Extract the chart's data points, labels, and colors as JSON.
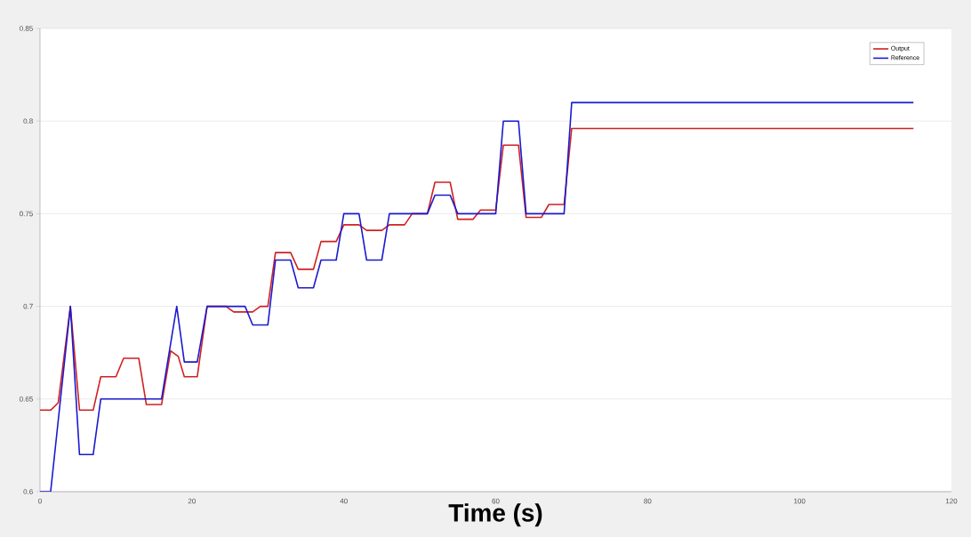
{
  "chart_data": {
    "type": "line",
    "xlabel": "Time (s)",
    "xlim": [
      0,
      120
    ],
    "ylim": [
      0.6,
      0.85
    ],
    "xticks": [
      0,
      20,
      40,
      60,
      80,
      100,
      120
    ],
    "yticks": [
      0.6,
      0.65,
      0.7,
      0.75,
      0.8,
      0.85
    ],
    "grid": "y",
    "legend": "top right",
    "marker": "none",
    "line_style": "solid",
    "series": [
      {
        "name": "Output",
        "color": "#d02020",
        "x": [
          0,
          1.4,
          2.4,
          4,
          5.2,
          7,
          8,
          10,
          11,
          13,
          14,
          16,
          17.2,
          18.2,
          19,
          20.7,
          22,
          24.5,
          25.5,
          28,
          29,
          30,
          31,
          33,
          34,
          36,
          37,
          39,
          40,
          42,
          43,
          45,
          46,
          48,
          49,
          51,
          52,
          54,
          55,
          57,
          58,
          60,
          61,
          63,
          64,
          66,
          67,
          69,
          70,
          115
        ],
        "values": [
          0.644,
          0.644,
          0.648,
          0.7,
          0.644,
          0.644,
          0.662,
          0.662,
          0.672,
          0.672,
          0.647,
          0.647,
          0.676,
          0.673,
          0.662,
          0.662,
          0.7,
          0.7,
          0.697,
          0.697,
          0.7,
          0.7,
          0.729,
          0.729,
          0.72,
          0.72,
          0.735,
          0.735,
          0.744,
          0.744,
          0.741,
          0.741,
          0.744,
          0.744,
          0.75,
          0.75,
          0.767,
          0.767,
          0.747,
          0.747,
          0.752,
          0.752,
          0.787,
          0.787,
          0.748,
          0.748,
          0.755,
          0.755,
          0.796,
          0.796
        ]
      },
      {
        "name": "Reference",
        "color": "#1a1ad0",
        "x": [
          0,
          1.4,
          4,
          5.2,
          7,
          8,
          16,
          18,
          19,
          20.7,
          22,
          27,
          28,
          30,
          31,
          33,
          34,
          36,
          37,
          39,
          40,
          42,
          43,
          45,
          46,
          51,
          52,
          54,
          55,
          60,
          61,
          63,
          64,
          69,
          70,
          115
        ],
        "values": [
          0.6,
          0.6,
          0.7,
          0.62,
          0.62,
          0.65,
          0.65,
          0.7,
          0.67,
          0.67,
          0.7,
          0.7,
          0.69,
          0.69,
          0.725,
          0.725,
          0.71,
          0.71,
          0.725,
          0.725,
          0.75,
          0.75,
          0.725,
          0.725,
          0.75,
          0.75,
          0.76,
          0.76,
          0.75,
          0.75,
          0.8,
          0.8,
          0.75,
          0.75,
          0.81,
          0.81
        ]
      }
    ]
  }
}
